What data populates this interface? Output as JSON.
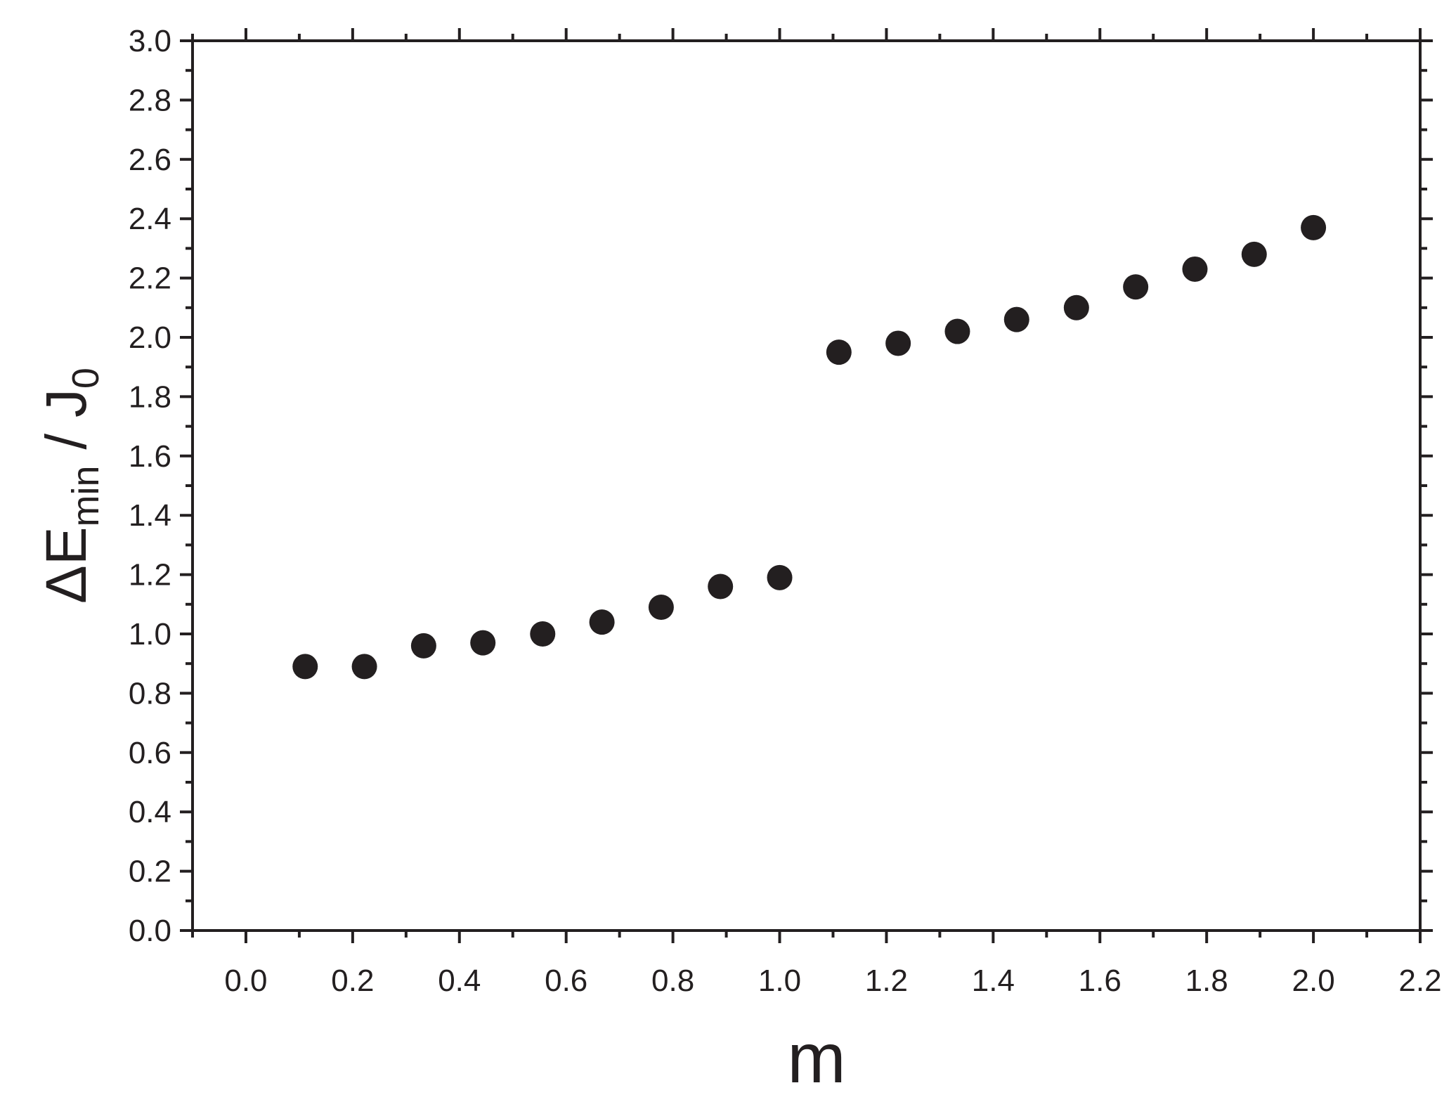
{
  "chart_data": {
    "type": "scatter",
    "title": "",
    "xlabel": "m",
    "ylabel": {
      "prefix": "ΔE",
      "subscript": "min",
      "middle": " / J",
      "subscript2": "0"
    },
    "xlim": [
      -0.1,
      2.2
    ],
    "ylim": [
      0.0,
      3.0
    ],
    "x_major_ticks": [
      0.0,
      0.2,
      0.4,
      0.6,
      0.8,
      1.0,
      1.2,
      1.4,
      1.6,
      1.8,
      2.0,
      2.2
    ],
    "x_tick_labels": [
      "0.0",
      "0.2",
      "0.4",
      "0.6",
      "0.8",
      "1.0",
      "1.2",
      "1.4",
      "1.6",
      "1.8",
      "2.0",
      "2.2"
    ],
    "y_major_ticks": [
      0.0,
      0.2,
      0.4,
      0.6,
      0.8,
      1.0,
      1.2,
      1.4,
      1.6,
      1.8,
      2.0,
      2.2,
      2.4,
      2.6,
      2.8,
      3.0
    ],
    "y_tick_labels": [
      "0.0",
      "0.2",
      "0.4",
      "0.6",
      "0.8",
      "1.0",
      "1.2",
      "1.4",
      "1.6",
      "1.8",
      "2.0",
      "2.2",
      "2.4",
      "2.6",
      "2.8",
      "3.0"
    ],
    "grid": false,
    "marker_color": "#231f20",
    "series": [
      {
        "x": [
          0.111,
          0.222,
          0.333,
          0.444,
          0.556,
          0.667,
          0.778,
          0.889,
          1.0,
          1.111,
          1.222,
          1.333,
          1.444,
          1.556,
          1.667,
          1.778,
          1.889,
          2.0
        ],
        "y": [
          0.89,
          0.89,
          0.96,
          0.97,
          1.0,
          1.04,
          1.09,
          1.16,
          1.19,
          1.95,
          1.98,
          2.02,
          2.06,
          2.1,
          2.17,
          2.23,
          2.28,
          2.37
        ]
      }
    ]
  }
}
